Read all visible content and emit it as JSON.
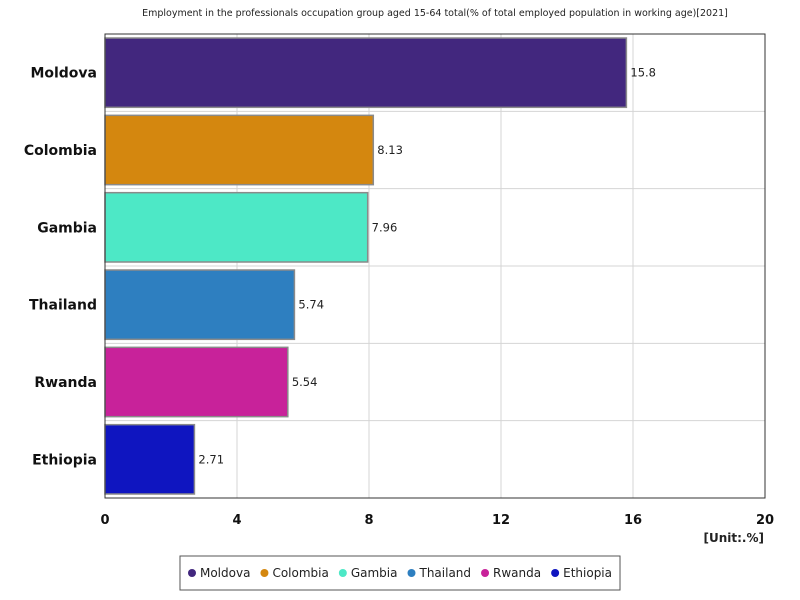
{
  "chart_data": {
    "type": "bar",
    "orientation": "horizontal",
    "title": "Employment in the professionals occupation group aged 15-64 total(% of total employed population in working age)[2021]",
    "categories": [
      "Moldova",
      "Colombia",
      "Gambia",
      "Thailand",
      "Rwanda",
      "Ethiopia"
    ],
    "values": [
      15.8,
      8.13,
      7.96,
      5.74,
      5.54,
      2.71
    ],
    "value_labels": [
      "15.8",
      "8.13",
      "7.96",
      "5.74",
      "5.54",
      "2.71"
    ],
    "colors": [
      "#42277e",
      "#d4870f",
      "#4de8c6",
      "#2e7fc0",
      "#c8229a",
      "#0f15c0"
    ],
    "xlim": [
      0,
      20
    ],
    "xticks": [
      0,
      4,
      8,
      12,
      16,
      20
    ],
    "xtick_labels": [
      "0",
      "4",
      "8",
      "12",
      "16",
      "20"
    ],
    "unit_label": "[Unit:.%]",
    "grid": true,
    "legend": {
      "position": "bottom-center",
      "entries": [
        "Moldova",
        "Colombia",
        "Gambia",
        "Thailand",
        "Rwanda",
        "Ethiopia"
      ]
    }
  }
}
